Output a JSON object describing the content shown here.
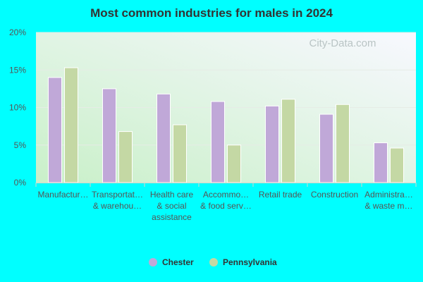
{
  "chart_data": {
    "type": "bar",
    "title": "Most common industries for males in 2024",
    "categories": [
      [
        "Manufactur…"
      ],
      [
        "Transportat…",
        "& warehou…"
      ],
      [
        "Health care",
        "& social",
        "assistance"
      ],
      [
        "Accommo…",
        "& food serv…"
      ],
      [
        "Retail trade"
      ],
      [
        "Construction"
      ],
      [
        "Administra…",
        "& waste m…"
      ]
    ],
    "series": [
      {
        "name": "Chester",
        "color": "#c0a8d8",
        "values": [
          14.0,
          12.5,
          11.8,
          10.8,
          10.2,
          9.1,
          5.3
        ]
      },
      {
        "name": "Pennsylvania",
        "color": "#c4d8a4",
        "values": [
          15.3,
          6.8,
          7.7,
          5.0,
          11.1,
          10.4,
          4.6
        ]
      }
    ],
    "ylim": [
      0,
      20
    ],
    "yticks": [
      "0%",
      "5%",
      "10%",
      "15%",
      "20%"
    ],
    "grid": true,
    "legend_position": "bottom"
  },
  "watermark": "City-Data.com"
}
